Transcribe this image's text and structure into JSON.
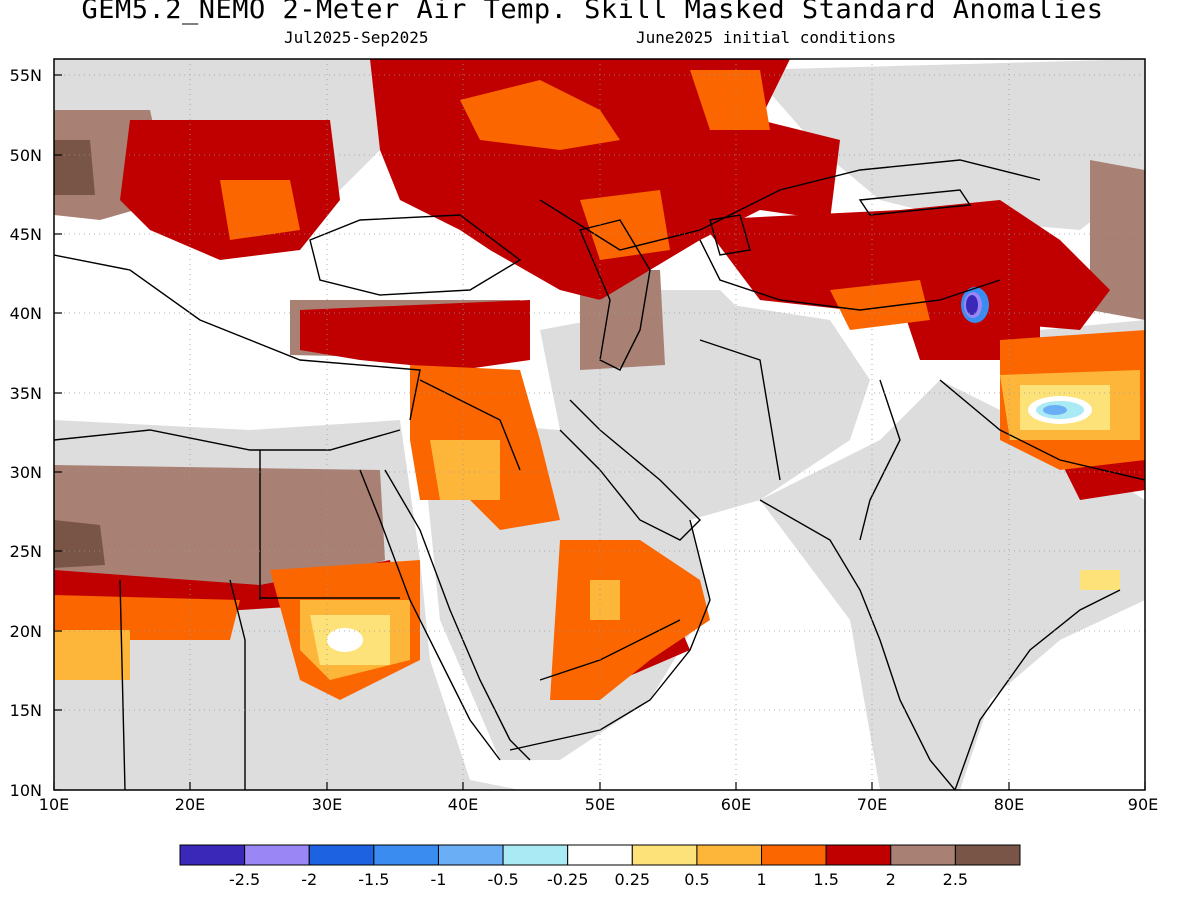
{
  "title": "GEM5.2_NEMO 2-Meter Air Temp. Skill Masked Standard Anomalies",
  "subtitle_left": "Jul2025-Sep2025",
  "subtitle_right": "June2025 initial conditions",
  "map": {
    "region": "Middle East / Central & South Asia",
    "lon_range": [
      10,
      90
    ],
    "lat_range": [
      10,
      56
    ],
    "lon_ticks": [
      "10E",
      "20E",
      "30E",
      "40E",
      "50E",
      "60E",
      "70E",
      "80E",
      "90E"
    ],
    "lat_ticks": [
      "10N",
      "15N",
      "20N",
      "25N",
      "30N",
      "35N",
      "40N",
      "45N",
      "50N",
      "55N"
    ],
    "masked_color": "#dddddd",
    "land_outline_color": "#000000",
    "ocean_color": "#ffffff"
  },
  "colorbar": {
    "labels": [
      "-2.5",
      "-2",
      "-1.5",
      "-1",
      "-0.5",
      "-0.25",
      "0.25",
      "0.5",
      "1",
      "1.5",
      "2",
      "2.5"
    ],
    "colors": [
      "#3a29b8",
      "#9a87f5",
      "#1d62e0",
      "#3a8cf0",
      "#6aaef5",
      "#aaeaf5",
      "#ffffff",
      "#fde27a",
      "#fdb63a",
      "#fb6600",
      "#c00000",
      "#a98174",
      "#795548"
    ]
  }
}
